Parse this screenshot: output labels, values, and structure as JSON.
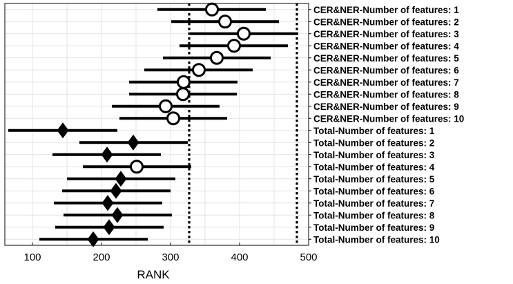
{
  "chart_data": {
    "type": "scatter",
    "subtype": "interval-plot",
    "title": "",
    "xlabel": "RANK",
    "ylabel": "",
    "xlim": [
      60,
      500
    ],
    "xticks": [
      100,
      200,
      300,
      400,
      500
    ],
    "grid": true,
    "reference_lines": [
      {
        "x": 327,
        "style": "dotted"
      },
      {
        "x": 483,
        "style": "dotted"
      }
    ],
    "rows": [
      {
        "label": "CER&NER-Number of features: 1",
        "center": 360,
        "low": 281,
        "high": 438,
        "marker": "circle"
      },
      {
        "label": "CER&NER-Number of features: 2",
        "center": 379,
        "low": 301,
        "high": 457,
        "marker": "circle"
      },
      {
        "label": "CER&NER-Number of features: 3",
        "center": 406,
        "low": 328,
        "high": 485,
        "marker": "circle"
      },
      {
        "label": "CER&NER-Number of features: 4",
        "center": 392,
        "low": 313,
        "high": 470,
        "marker": "circle"
      },
      {
        "label": "CER&NER-Number of features: 5",
        "center": 367,
        "low": 289,
        "high": 445,
        "marker": "circle"
      },
      {
        "label": "CER&NER-Number of features: 6",
        "center": 341,
        "low": 262,
        "high": 419,
        "marker": "circle"
      },
      {
        "label": "CER&NER-Number of features: 7",
        "center": 319,
        "low": 240,
        "high": 397,
        "marker": "circle"
      },
      {
        "label": "CER&NER-Number of features: 8",
        "center": 318,
        "low": 240,
        "high": 396,
        "marker": "circle"
      },
      {
        "label": "CER&NER-Number of features: 9",
        "center": 293,
        "low": 215,
        "high": 371,
        "marker": "circle"
      },
      {
        "label": "CER&NER-Number of features: 10",
        "center": 304,
        "low": 226,
        "high": 382,
        "marker": "circle"
      },
      {
        "label": "Total-Number of features: 1",
        "center": 144,
        "low": 65,
        "high": 223,
        "marker": "diamond"
      },
      {
        "label": "Total-Number of features: 2",
        "center": 246,
        "low": 168,
        "high": 325,
        "marker": "diamond"
      },
      {
        "label": "Total-Number of features: 3",
        "center": 208,
        "low": 129,
        "high": 286,
        "marker": "diamond"
      },
      {
        "label": "Total-Number of features: 4",
        "center": 251,
        "low": 173,
        "high": 330,
        "marker": "circle"
      },
      {
        "label": "Total-Number of features: 5",
        "center": 228,
        "low": 150,
        "high": 307,
        "marker": "diamond"
      },
      {
        "label": "Total-Number of features: 6",
        "center": 221,
        "low": 143,
        "high": 300,
        "marker": "diamond"
      },
      {
        "label": "Total-Number of features: 7",
        "center": 209,
        "low": 131,
        "high": 288,
        "marker": "diamond"
      },
      {
        "label": "Total-Number of features: 8",
        "center": 223,
        "low": 145,
        "high": 302,
        "marker": "diamond"
      },
      {
        "label": "Total-Number of features: 9",
        "center": 211,
        "low": 133,
        "high": 290,
        "marker": "diamond"
      },
      {
        "label": "Total-Number of features: 10",
        "center": 188,
        "low": 110,
        "high": 267,
        "marker": "diamond"
      }
    ]
  }
}
